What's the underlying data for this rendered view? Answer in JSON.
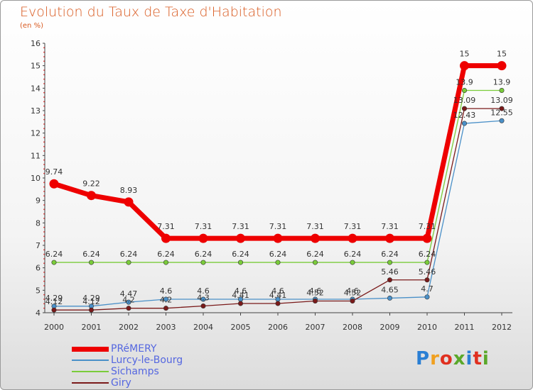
{
  "title": "Evolution du Taux de Taxe d'Habitation",
  "unit": "(en %)",
  "logo": {
    "text": "Proxiti",
    "colors": [
      "#2a7fd4",
      "#f0a020",
      "#e03020",
      "#5aa82a",
      "#2a7fd4",
      "#e03020",
      "#5aa82a"
    ]
  },
  "chart_data": {
    "type": "line",
    "title": "Evolution du Taux de Taxe d'Habitation",
    "ylabel": "(en %)",
    "xlabel": "",
    "ylim": [
      4,
      16
    ],
    "yticks": [
      4,
      5,
      6,
      7,
      8,
      9,
      10,
      11,
      12,
      13,
      14,
      15,
      16
    ],
    "categories": [
      "2000",
      "2001",
      "2002",
      "2003",
      "2004",
      "2005",
      "2006",
      "2007",
      "2008",
      "2009",
      "2010",
      "2011",
      "2012"
    ],
    "series": [
      {
        "name": "PRéMERY",
        "color": "#ee0000",
        "values": [
          9.74,
          9.22,
          8.93,
          7.31,
          7.31,
          7.31,
          7.31,
          7.31,
          7.31,
          7.31,
          7.31,
          15,
          15
        ],
        "labels": [
          "9.74",
          "9.22",
          "8.93",
          "7.31",
          "7.31",
          "7.31",
          "7.31",
          "7.31",
          "7.31",
          "7.31",
          "7.31",
          "15",
          "15"
        ]
      },
      {
        "name": "Lurcy-le-Bourg",
        "color": "#4a90c8",
        "values": [
          4.29,
          4.29,
          4.47,
          4.6,
          4.6,
          4.6,
          4.6,
          4.6,
          4.6,
          4.65,
          4.7,
          12.43,
          12.55
        ],
        "labels": [
          "4.29",
          "4.29",
          "4.47",
          "4.6",
          "4.6",
          "4.6",
          "4.6",
          "4.6",
          "4.6",
          "4.65",
          "4.7",
          "12.43",
          "12.55"
        ]
      },
      {
        "name": "Sichamps",
        "color": "#7acc3a",
        "values": [
          6.24,
          6.24,
          6.24,
          6.24,
          6.24,
          6.24,
          6.24,
          6.24,
          6.24,
          6.24,
          6.24,
          13.9,
          13.9
        ],
        "labels": [
          "6.24",
          "6.24",
          "6.24",
          "6.24",
          "6.24",
          "6.24",
          "6.24",
          "6.24",
          "6.24",
          "6.24",
          "6.24",
          "13.9",
          "13.9"
        ]
      },
      {
        "name": "Giry",
        "color": "#7a1a1a",
        "values": [
          4.12,
          4.12,
          4.2,
          4.2,
          4.3,
          4.41,
          4.41,
          4.52,
          4.52,
          5.46,
          5.46,
          13.09,
          13.09
        ],
        "labels": [
          "4.12",
          "4.12",
          "4.2",
          "4.2",
          "4.3",
          "4.41",
          "4.41",
          "4.52",
          "4.52",
          "5.46",
          "5.46",
          "13.09",
          "13.09"
        ]
      }
    ],
    "legend_position": "bottom-left",
    "grid": false
  }
}
